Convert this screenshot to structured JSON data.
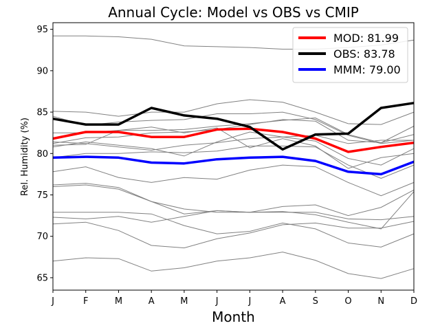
{
  "chart_data": {
    "type": "line",
    "title": "Annual Cycle: Model vs OBS vs CMIP",
    "xlabel": "Month",
    "ylabel": "Rel. Humidity (%)",
    "categories": [
      "J",
      "F",
      "M",
      "A",
      "M",
      "J",
      "J",
      "A",
      "S",
      "O",
      "N",
      "D"
    ],
    "ylim": [
      63.5,
      95.8
    ],
    "yticks": [
      65,
      70,
      75,
      80,
      85,
      90,
      95
    ],
    "legend_position": "top-right",
    "highlight_series": [
      {
        "name": "MOD",
        "legend_label": "MOD: 81.99",
        "color": "#ff0000",
        "values": [
          81.8,
          82.6,
          82.6,
          82.0,
          82.0,
          82.9,
          83.0,
          82.6,
          81.8,
          80.2,
          80.8,
          81.3
        ]
      },
      {
        "name": "OBS",
        "legend_label": "OBS: 83.78",
        "color": "#000000",
        "values": [
          84.2,
          83.5,
          83.5,
          85.5,
          84.6,
          84.2,
          83.2,
          80.5,
          82.3,
          82.4,
          85.5,
          86.1
        ]
      },
      {
        "name": "MMM",
        "legend_label": "MMM: 79.00",
        "color": "#0000ff",
        "values": [
          79.5,
          79.6,
          79.5,
          78.9,
          78.8,
          79.3,
          79.5,
          79.6,
          79.1,
          77.8,
          77.5,
          79.0
        ]
      }
    ],
    "background_series_color": "#808080",
    "background_series": [
      {
        "name": "cmip-1",
        "values": [
          94.2,
          94.2,
          94.1,
          93.8,
          93.0,
          92.9,
          92.8,
          92.6,
          92.6,
          92.8,
          93.1,
          93.7
        ]
      },
      {
        "name": "cmip-2",
        "values": [
          85.1,
          85.0,
          84.5,
          85.0,
          85.0,
          86.0,
          86.5,
          86.2,
          85.0,
          83.6,
          83.5,
          85.0
        ]
      },
      {
        "name": "cmip-3",
        "values": [
          84.5,
          83.4,
          83.8,
          84.0,
          84.1,
          84.8,
          84.8,
          85.0,
          84.1,
          82.2,
          81.2,
          81.6
        ]
      },
      {
        "name": "cmip-4",
        "values": [
          82.5,
          82.5,
          82.8,
          82.8,
          82.9,
          83.3,
          83.6,
          84.0,
          84.3,
          82.3,
          81.3,
          83.3
        ]
      },
      {
        "name": "cmip-5",
        "values": [
          81.2,
          81.9,
          82.0,
          82.5,
          82.6,
          82.9,
          83.5,
          84.1,
          83.9,
          81.6,
          81.3,
          82.3
        ]
      },
      {
        "name": "cmip-6",
        "values": [
          80.8,
          81.4,
          81.0,
          80.6,
          79.7,
          81.4,
          82.6,
          82.0,
          82.2,
          81.2,
          81.6,
          81.6
        ]
      },
      {
        "name": "cmip-7",
        "values": [
          81.4,
          81.2,
          80.8,
          80.4,
          81.0,
          81.3,
          81.8,
          82.0,
          81.5,
          79.4,
          78.6,
          80.6
        ]
      },
      {
        "name": "cmip-8",
        "values": [
          79.5,
          80.0,
          80.0,
          80.2,
          80.1,
          80.3,
          80.9,
          80.9,
          80.8,
          78.6,
          77.0,
          78.6
        ]
      },
      {
        "name": "cmip-9",
        "values": [
          81.0,
          81.1,
          82.8,
          83.2,
          82.5,
          83.1,
          80.7,
          81.8,
          80.9,
          78.2,
          79.5,
          80.0
        ]
      },
      {
        "name": "cmip-10",
        "values": [
          77.8,
          78.4,
          77.1,
          76.5,
          77.1,
          76.9,
          78.0,
          78.6,
          78.4,
          76.5,
          74.9,
          76.5
        ]
      },
      {
        "name": "cmip-11",
        "values": [
          76.2,
          76.4,
          75.9,
          74.2,
          73.3,
          72.9,
          72.9,
          73.6,
          73.8,
          72.5,
          73.5,
          75.6
        ]
      },
      {
        "name": "cmip-12",
        "values": [
          76.0,
          76.2,
          75.7,
          74.2,
          72.7,
          73.1,
          72.9,
          73.0,
          72.6,
          71.7,
          70.9,
          75.4
        ]
      },
      {
        "name": "cmip-13",
        "values": [
          72.9,
          72.9,
          72.9,
          72.7,
          71.3,
          70.3,
          70.6,
          71.6,
          70.9,
          69.2,
          68.7,
          70.3
        ]
      },
      {
        "name": "cmip-14",
        "values": [
          72.3,
          72.1,
          72.4,
          71.7,
          72.4,
          73.1,
          72.9,
          72.9,
          72.9,
          72.1,
          72.0,
          72.4
        ]
      },
      {
        "name": "cmip-15",
        "values": [
          71.5,
          71.7,
          70.7,
          68.9,
          68.6,
          69.7,
          70.4,
          71.4,
          71.6,
          71.0,
          71.0,
          71.8
        ]
      },
      {
        "name": "cmip-16",
        "values": [
          67.0,
          67.4,
          67.3,
          65.8,
          66.2,
          67.0,
          67.4,
          68.1,
          67.1,
          65.5,
          64.9,
          66.1
        ]
      }
    ]
  }
}
